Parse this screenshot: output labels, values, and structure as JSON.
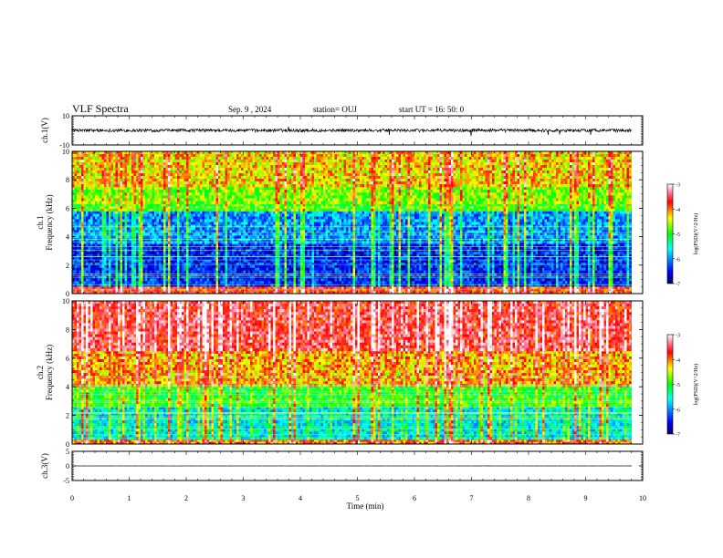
{
  "header": {
    "title": "VLF Spectra",
    "date": "Sep. 9 , 2024",
    "station": "station= OUJ",
    "start": "start  UT =   16: 50: 0"
  },
  "colors": {
    "dark_blue": "#00008b",
    "blue": "#0000ff",
    "cyan": "#00ffff",
    "green": "#00ff00",
    "yellow": "#ffff00",
    "red": "#ff0000"
  },
  "chart_data": [
    {
      "type": "line",
      "name": "ch1-waveform",
      "ylabel": "ch.1(V)",
      "ylim": [
        -10,
        10
      ],
      "yticks": [
        "10",
        "-10"
      ],
      "xlim": [
        0,
        10
      ],
      "baseline": 0,
      "description_values": {
        "noise_amplitude_v": 1.5
      }
    },
    {
      "type": "heatmap",
      "name": "ch1-spectrogram",
      "ylabel": "ch.1\nFrequency  (kHz)",
      "ylabel_lines": [
        "ch.1",
        "Frequency  (kHz)"
      ],
      "ylim": [
        0,
        10
      ],
      "yticks": [
        "0",
        "2",
        "4",
        "6",
        "8",
        "10"
      ],
      "xlim": [
        0,
        9.83
      ],
      "colorbar": {
        "label": "log(PSD)(V^2/Hz)",
        "range": [
          -7,
          -3
        ],
        "ticks": [
          "-3",
          "-4",
          "-5",
          "-6",
          "-7"
        ]
      },
      "bands": [
        {
          "from": 0,
          "to": 0.5,
          "level": -3.8
        },
        {
          "from": 0.5,
          "to": 3.5,
          "level": -6.4
        },
        {
          "from": 3.5,
          "to": 5.8,
          "level": -6.0
        },
        {
          "from": 5.8,
          "to": 6.3,
          "level": -4.9
        },
        {
          "from": 6.3,
          "to": 7.5,
          "level": -4.7
        },
        {
          "from": 7.5,
          "to": 10,
          "level": -4.3
        }
      ]
    },
    {
      "type": "heatmap",
      "name": "ch2-spectrogram",
      "ylabel": "ch.2\nFrequency  (kHz)",
      "ylabel_lines": [
        "ch.2",
        "Frequency  (kHz)"
      ],
      "ylim": [
        0,
        10
      ],
      "yticks": [
        "0",
        "2",
        "4",
        "6",
        "8",
        "10"
      ],
      "xlim": [
        0,
        9.83
      ],
      "colorbar": {
        "label": "log(PSD)(V^2/Hz)",
        "range": [
          -7,
          -3
        ],
        "ticks": [
          "-3",
          "-4",
          "-5",
          "-6",
          "-7"
        ]
      },
      "bands": [
        {
          "from": 0,
          "to": 0.3,
          "level": -4.0
        },
        {
          "from": 0.3,
          "to": 2.6,
          "level": -5.6
        },
        {
          "from": 2.6,
          "to": 4.0,
          "level": -5.0
        },
        {
          "from": 4.0,
          "to": 6.5,
          "level": -4.2
        },
        {
          "from": 6.5,
          "to": 10,
          "level": -3.6
        }
      ]
    },
    {
      "type": "line",
      "name": "ch3-waveform",
      "ylabel": "ch.3(V)",
      "ylim": [
        -5,
        5
      ],
      "yticks": [
        "5",
        "0",
        "-5"
      ],
      "xlim": [
        0,
        10
      ],
      "baseline": 0
    }
  ],
  "xaxis": {
    "label": "Time  (min)",
    "ticks": [
      "0",
      "1",
      "2",
      "3",
      "4",
      "5",
      "6",
      "7",
      "8",
      "9",
      "10"
    ],
    "range": [
      0,
      10
    ]
  }
}
